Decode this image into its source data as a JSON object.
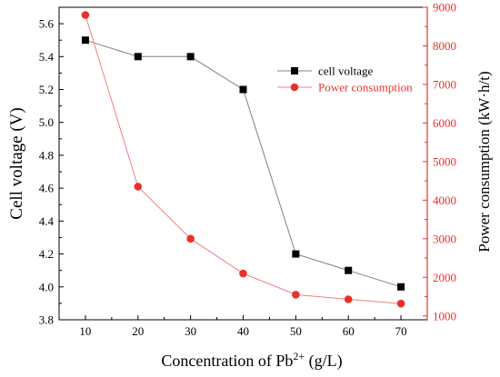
{
  "chart_data": {
    "type": "line",
    "x": [
      10,
      20,
      30,
      40,
      50,
      60,
      70
    ],
    "xlabel_main": "Concentration  of  Pb",
    "xlabel_sup": "2+",
    "xlabel_unit": " (g/L)",
    "ylabel_left": "Cell voltage  (V)",
    "ylabel_right": "Power consumption  (kW·h/t)",
    "xlim": [
      5,
      75
    ],
    "ylim_left": [
      3.8,
      5.7
    ],
    "ylim_right": [
      900,
      9000
    ],
    "xticks": [
      "10",
      "20",
      "30",
      "40",
      "50",
      "60",
      "70"
    ],
    "yticks_left": [
      "3.8",
      "4.0",
      "4.2",
      "4.4",
      "4.6",
      "4.8",
      "5.0",
      "5.2",
      "5.4",
      "5.6"
    ],
    "yticks_right": [
      "1000",
      "2000",
      "3000",
      "4000",
      "5000",
      "6000",
      "7000",
      "8000",
      "9000"
    ],
    "legend_position": "top-right",
    "grid": false,
    "series": [
      {
        "name": "cell voltage",
        "axis": "left",
        "marker": "square",
        "color": "#000000",
        "line_color": "#808080",
        "values": [
          5.5,
          5.4,
          5.4,
          5.2,
          4.2,
          4.1,
          4.0
        ]
      },
      {
        "name": "Power consumption",
        "axis": "right",
        "marker": "circle",
        "color": "#e8312b",
        "line_color": "#f08080",
        "values": [
          8800,
          4350,
          3000,
          2100,
          1550,
          1430,
          1320
        ]
      }
    ]
  }
}
